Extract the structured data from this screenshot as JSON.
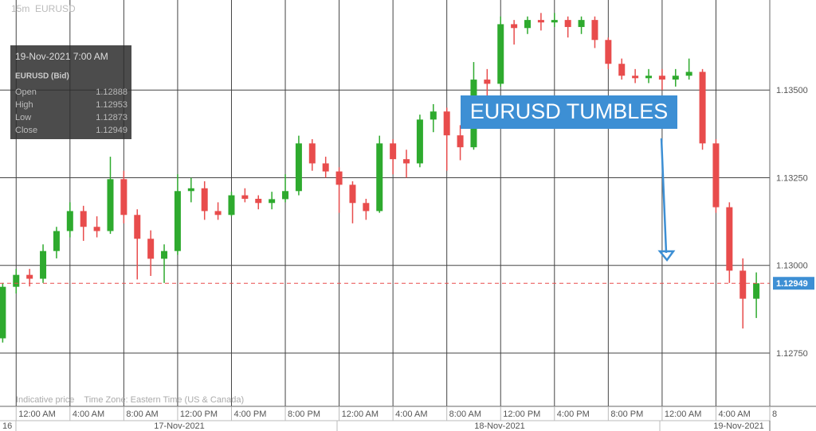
{
  "chart_data": {
    "type": "candlestick",
    "title": "15m  EURUSD",
    "series": [
      {
        "name": "EURUSD",
        "up_color": "#2eaa2e",
        "down_color": "#e84c4c",
        "x": [
          -1,
          0,
          1,
          2,
          3,
          4,
          5,
          6,
          7,
          8,
          9,
          10,
          11,
          12,
          13,
          14,
          15,
          16,
          17,
          18,
          19,
          20,
          21,
          22,
          23,
          24,
          25,
          26,
          27,
          28,
          29,
          30,
          31,
          32,
          33,
          34,
          35,
          36,
          37,
          38,
          39,
          40,
          41,
          42,
          43,
          44,
          45,
          46,
          47,
          48,
          49,
          50,
          51,
          52,
          53,
          54,
          55
        ],
        "open": [
          1.12792,
          1.12939,
          1.12973,
          1.12962,
          1.13041,
          1.13098,
          1.13155,
          1.1311,
          1.13098,
          1.13246,
          1.13144,
          1.13076,
          1.13019,
          1.13041,
          1.13212,
          1.1322,
          1.13155,
          1.13144,
          1.132,
          1.1319,
          1.13178,
          1.13189,
          1.13212,
          1.13348,
          1.13291,
          1.13268,
          1.1323,
          1.13178,
          1.13155,
          1.13348,
          1.13303,
          1.13291,
          1.13416,
          1.13439,
          1.13371,
          1.13337,
          1.1353,
          1.13518,
          1.13688,
          1.13677,
          1.137,
          1.13693,
          1.137,
          1.1368,
          1.137,
          1.13643,
          1.13575,
          1.13541,
          1.13534,
          1.13541,
          1.1353,
          1.13541,
          1.13552,
          1.13348,
          1.13166,
          1.12985,
          1.12905
        ],
        "high": [
          1.1295,
          1.1299,
          1.1299,
          1.1306,
          1.1311,
          1.1318,
          1.1317,
          1.1314,
          1.1331,
          1.1327,
          1.1316,
          1.131,
          1.1306,
          1.1326,
          1.1325,
          1.1324,
          1.1318,
          1.1321,
          1.1322,
          1.132,
          1.1321,
          1.1326,
          1.1337,
          1.1336,
          1.1331,
          1.1328,
          1.1324,
          1.1319,
          1.1337,
          1.1336,
          1.1333,
          1.1343,
          1.1346,
          1.1345,
          1.134,
          1.1358,
          1.1356,
          1.1371,
          1.137,
          1.1371,
          1.1372,
          1.1372,
          1.1371,
          1.1371,
          1.1371,
          1.1365,
          1.1359,
          1.1356,
          1.1356,
          1.1356,
          1.1356,
          1.1359,
          1.1356,
          1.1336,
          1.1318,
          1.1302,
          1.1298
        ],
        "low": [
          1.1278,
          1.1292,
          1.1294,
          1.1295,
          1.1302,
          1.1308,
          1.1307,
          1.1308,
          1.1309,
          1.1312,
          1.1296,
          1.1297,
          1.1295,
          1.1303,
          1.1318,
          1.1313,
          1.1313,
          1.1314,
          1.1318,
          1.1316,
          1.1316,
          1.1318,
          1.132,
          1.1327,
          1.1325,
          1.1315,
          1.1312,
          1.1313,
          1.1315,
          1.1326,
          1.1325,
          1.1328,
          1.1338,
          1.1327,
          1.133,
          1.1333,
          1.1347,
          1.1351,
          1.1363,
          1.1366,
          1.1367,
          1.1368,
          1.1365,
          1.1366,
          1.1362,
          1.1356,
          1.1353,
          1.1352,
          1.1352,
          1.135,
          1.1351,
          1.1353,
          1.1333,
          1.1315,
          1.1295,
          1.1282,
          1.1285
        ],
        "close": [
          1.12939,
          1.12973,
          1.12962,
          1.13041,
          1.13098,
          1.13155,
          1.1311,
          1.13098,
          1.13246,
          1.13144,
          1.13076,
          1.13019,
          1.13041,
          1.13212,
          1.1322,
          1.13155,
          1.13144,
          1.132,
          1.1319,
          1.13178,
          1.13189,
          1.13212,
          1.13348,
          1.13291,
          1.13268,
          1.1323,
          1.13178,
          1.13155,
          1.13348,
          1.13303,
          1.13291,
          1.13416,
          1.13439,
          1.13371,
          1.13337,
          1.1353,
          1.13518,
          1.13688,
          1.13677,
          1.137,
          1.13693,
          1.137,
          1.1368,
          1.137,
          1.13643,
          1.13575,
          1.13541,
          1.13534,
          1.13541,
          1.1353,
          1.13541,
          1.13552,
          1.13348,
          1.13166,
          1.12985,
          1.12905,
          1.12949
        ]
      }
    ],
    "xlim": [
      -1.2,
      56
    ],
    "xticks": [
      {
        "value": 0,
        "label": "12:00 AM"
      },
      {
        "value": 4,
        "label": "4:00 AM"
      },
      {
        "value": 8,
        "label": "8:00 AM"
      },
      {
        "value": 12,
        "label": "12:00 PM"
      },
      {
        "value": 16,
        "label": "4:00 PM"
      },
      {
        "value": 20,
        "label": "8:00 PM"
      },
      {
        "value": 24,
        "label": "12:00 AM"
      },
      {
        "value": 28,
        "label": "4:00 AM"
      },
      {
        "value": 32,
        "label": "8:00 AM"
      },
      {
        "value": 36,
        "label": "12:00 PM"
      },
      {
        "value": 40,
        "label": "4:00 PM"
      },
      {
        "value": 44,
        "label": "8:00 PM"
      },
      {
        "value": 48,
        "label": "12:00 AM"
      },
      {
        "value": 52,
        "label": "4:00 AM"
      },
      {
        "value": 56,
        "label": "8"
      }
    ],
    "dates": [
      "16",
      "17-Nov-2021",
      "18-Nov-2021",
      "19-Nov-2021"
    ],
    "ylim": [
      1.12598,
      1.13757
    ],
    "yticks": [
      {
        "value": 1.1275,
        "label": "1.12750"
      },
      {
        "value": 1.13,
        "label": "1.13000"
      },
      {
        "value": 1.1325,
        "label": "1.13250"
      },
      {
        "value": 1.135,
        "label": "1.13500"
      }
    ],
    "grid": true,
    "last_price": 1.12949,
    "info": {
      "time": "19-Nov-2021 7:00 AM",
      "symbol": "EURUSD (Bid)",
      "rows": [
        {
          "label": "Open",
          "value": 1.12888
        },
        {
          "label": "High",
          "value": 1.12953
        },
        {
          "label": "Low",
          "value": 1.12873
        },
        {
          "label": "Close",
          "value": 1.12949
        }
      ]
    },
    "annotation": "EURUSD TUMBLES",
    "footer": "Indicative price    Time Zone: Eastern Time (US & Canada)"
  }
}
